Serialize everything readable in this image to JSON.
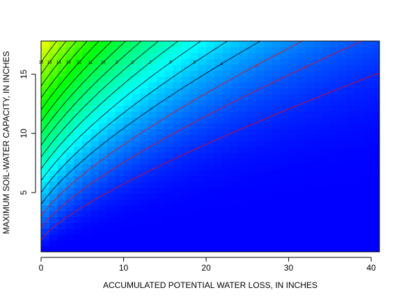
{
  "chart_data": {
    "type": "heatmap",
    "title": "",
    "xlabel": "ACCUMULATED POTENTIAL WATER LOSS, IN INCHES",
    "ylabel": "MAXIMUM SOIL-WATER CAPACITY, IN INCHES",
    "xlim": [
      0,
      41
    ],
    "ylim": [
      0,
      17.8
    ],
    "x_ticks": [
      0,
      10,
      20,
      30,
      40
    ],
    "y_ticks": [
      5,
      10,
      15
    ],
    "x_tick_labels": [
      "0",
      "10",
      "20",
      "30",
      "40"
    ],
    "y_tick_labels": [
      "5",
      "10",
      "15"
    ],
    "grid": false,
    "legend": "none",
    "surface": "remaining soil water = capacity * exp(-loss / capacity), inches",
    "color_scale": [
      "#0000ff",
      "#00ffff",
      "#00ff00",
      "#ffff00"
    ],
    "contours": [
      {
        "level": 1,
        "label": "1",
        "color": "#ff0000"
      },
      {
        "level": 2,
        "label": "2",
        "color": "#ff0000"
      },
      {
        "level": 3,
        "label": "3",
        "color": "#ff0000"
      },
      {
        "level": 4,
        "label": "4",
        "color": "#000000"
      },
      {
        "level": 5,
        "label": "5",
        "color": "#000000"
      },
      {
        "level": 6,
        "label": "6",
        "color": "#000000"
      },
      {
        "level": 7,
        "label": "7",
        "color": "#000000"
      },
      {
        "level": 8,
        "label": "8",
        "color": "#000000"
      },
      {
        "level": 9,
        "label": "9",
        "color": "#000000"
      },
      {
        "level": 10,
        "label": "10",
        "color": "#000000"
      },
      {
        "level": 11,
        "label": "11",
        "color": "#000000"
      },
      {
        "level": 12,
        "label": "12",
        "color": "#000000"
      },
      {
        "level": 13,
        "label": "13",
        "color": "#000000"
      },
      {
        "level": 14,
        "label": "14",
        "color": "#000000"
      },
      {
        "level": 15,
        "label": "15",
        "color": "#000000"
      },
      {
        "level": 16,
        "label": "16",
        "color": "#000000"
      }
    ]
  }
}
